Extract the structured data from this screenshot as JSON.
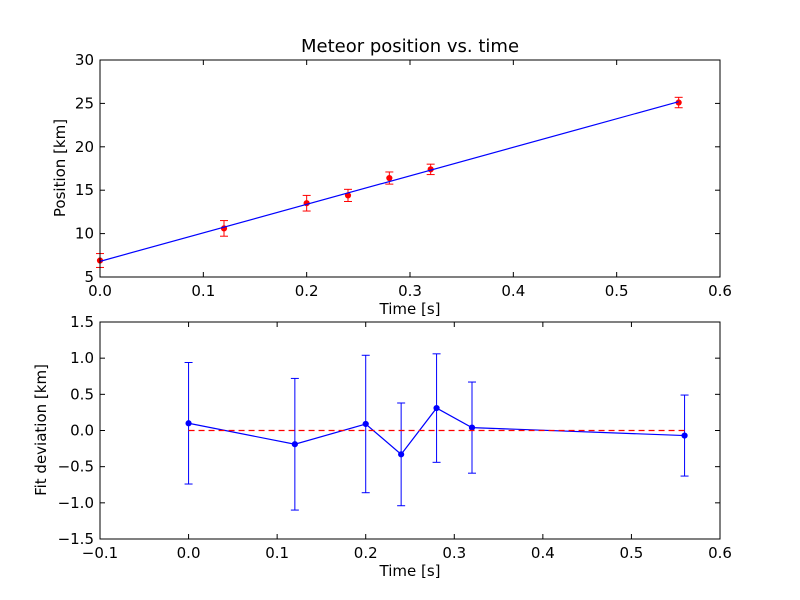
{
  "chart_data": [
    {
      "type": "scatter",
      "title": "Meteor position vs. time",
      "xlabel": "Time [s]",
      "ylabel": "Position [km]",
      "xlim": [
        0.0,
        0.6
      ],
      "ylim": [
        5,
        30
      ],
      "xticks": [
        "0.0",
        "0.1",
        "0.2",
        "0.3",
        "0.4",
        "0.5",
        "0.6"
      ],
      "yticks": [
        "5",
        "10",
        "15",
        "20",
        "25",
        "30"
      ],
      "grid": false,
      "series": [
        {
          "kind": "errorbar-points",
          "color": "#ff0000",
          "x": [
            0.0,
            0.12,
            0.2,
            0.24,
            0.28,
            0.32,
            0.56
          ],
          "y": [
            6.9,
            10.6,
            13.5,
            14.4,
            16.4,
            17.4,
            25.1
          ],
          "yerr": [
            0.8,
            0.9,
            0.9,
            0.7,
            0.7,
            0.6,
            0.6
          ]
        },
        {
          "kind": "fit-line",
          "color": "#0000ff",
          "x": [
            0.0,
            0.56
          ],
          "y": [
            6.8,
            25.2
          ]
        }
      ]
    },
    {
      "type": "line",
      "title": "",
      "xlabel": "Time [s]",
      "ylabel": "Fit deviation [km]",
      "xlim": [
        -0.1,
        0.6
      ],
      "ylim": [
        -1.5,
        1.5
      ],
      "xticks": [
        "−0.1",
        "0.0",
        "0.1",
        "0.2",
        "0.3",
        "0.4",
        "0.5",
        "0.6"
      ],
      "yticks": [
        "−1.5",
        "−1.0",
        "−0.5",
        "0.0",
        "0.5",
        "1.0",
        "1.5"
      ],
      "grid": false,
      "series": [
        {
          "kind": "errorbar-line",
          "color": "#0000ff",
          "x": [
            0.0,
            0.12,
            0.2,
            0.24,
            0.28,
            0.32,
            0.56
          ],
          "y": [
            0.1,
            -0.19,
            0.09,
            -0.33,
            0.31,
            0.04,
            -0.07
          ],
          "yerr": [
            0.84,
            0.91,
            0.95,
            0.71,
            0.75,
            0.63,
            0.56
          ]
        },
        {
          "kind": "zero-line",
          "color": "#ff0000",
          "dashed": true,
          "x": [
            0.0,
            0.56
          ],
          "y": [
            0.0,
            0.0
          ]
        }
      ]
    }
  ]
}
